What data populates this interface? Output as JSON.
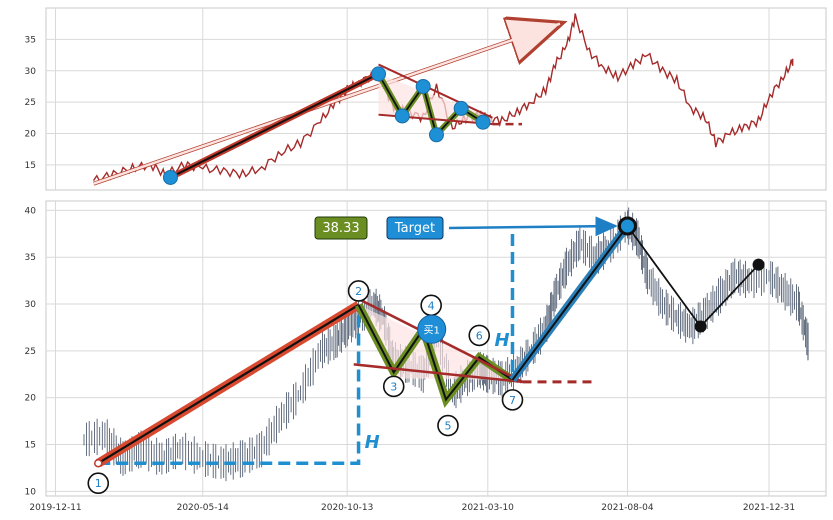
{
  "chart_data": [
    {
      "type": "line",
      "panel": "top",
      "ylim": [
        11,
        40
      ],
      "y_ticks": [
        15,
        20,
        25,
        30,
        35
      ],
      "x_range": [
        "2020-01-15",
        "2022-01-31"
      ],
      "series": [
        {
          "color": "#a52a2a",
          "x": [
            "2020-01-20",
            "2020-02-10",
            "2020-03-01",
            "2020-03-20",
            "2020-04-05",
            "2020-04-25",
            "2020-05-14",
            "2020-06-05",
            "2020-06-25",
            "2020-07-15",
            "2020-08-05",
            "2020-08-25",
            "2020-09-15",
            "2020-10-01",
            "2020-10-13",
            "2020-10-25",
            "2020-11-10",
            "2020-11-20",
            "2020-12-01",
            "2020-12-15",
            "2021-01-01",
            "2021-01-15",
            "2021-02-01",
            "2021-02-15",
            "2021-03-01",
            "2021-03-10",
            "2021-03-25",
            "2021-04-10",
            "2021-04-25",
            "2021-05-10",
            "2021-05-20",
            "2021-06-01",
            "2021-06-10",
            "2021-06-25",
            "2021-07-10",
            "2021-07-25",
            "2021-08-10",
            "2021-08-25",
            "2021-09-10",
            "2021-09-25",
            "2021-10-10",
            "2021-10-25",
            "2021-11-05",
            "2021-11-20",
            "2021-12-05",
            "2021-12-20",
            "2022-01-01",
            "2022-01-15",
            "2022-01-25"
          ],
          "values": [
            12.5,
            13.5,
            14.5,
            15.0,
            13.5,
            15.0,
            14.5,
            14.0,
            13.5,
            14.5,
            17.0,
            18.5,
            22.0,
            25.0,
            27.0,
            28.0,
            29.5,
            28.0,
            24.0,
            23.5,
            22.5,
            27.5,
            21.0,
            22.5,
            23.0,
            22.5,
            22.0,
            23.5,
            25.0,
            27.0,
            31.0,
            34.0,
            38.5,
            33.0,
            30.5,
            29.0,
            31.0,
            32.5,
            30.0,
            28.5,
            24.0,
            22.5,
            18.5,
            20.0,
            21.0,
            22.0,
            26.0,
            29.0,
            31.5
          ]
        }
      ],
      "annotations": {
        "blue_points": [
          {
            "x": "2020-04-10",
            "y": 13.0
          },
          {
            "x": "2020-11-15",
            "y": 29.5
          },
          {
            "x": "2020-12-10",
            "y": 22.8
          },
          {
            "x": "2021-01-01",
            "y": 27.5
          },
          {
            "x": "2021-01-15",
            "y": 19.8
          },
          {
            "x": "2021-02-10",
            "y": 24.0
          },
          {
            "x": "2021-03-05",
            "y": 21.8
          }
        ],
        "arrow_start": {
          "x": "2020-01-20",
          "y": 12.0
        },
        "arrow_end": {
          "x": "2021-05-25",
          "y": 37.5
        },
        "trend_upper": [
          {
            "x": "2020-11-15",
            "y": 31.0
          },
          {
            "x": "2021-03-15",
            "y": 22.5
          }
        ],
        "trend_lower": [
          {
            "x": "2020-11-15",
            "y": 23.0
          },
          {
            "x": "2021-03-15",
            "y": 21.5
          }
        ],
        "dashed_ext": [
          {
            "x": "2021-03-15",
            "y": 21.5
          },
          {
            "x": "2021-04-15",
            "y": 21.5
          }
        ]
      }
    },
    {
      "type": "line",
      "panel": "bottom",
      "ylim": [
        9.5,
        41
      ],
      "y_ticks": [
        10,
        15,
        20,
        25,
        30,
        35,
        40
      ],
      "x_ticks": [
        "2019-12-11",
        "2020-05-14",
        "2020-10-13",
        "2021-03-10",
        "2021-08-04",
        "2021-12-31"
      ],
      "x_range": [
        "2019-12-01",
        "2022-03-01"
      ],
      "series": [
        {
          "color": "#3f4d63",
          "x": [
            "2020-01-10",
            "2020-02-01",
            "2020-02-20",
            "2020-03-10",
            "2020-04-01",
            "2020-04-20",
            "2020-05-14",
            "2020-06-05",
            "2020-06-25",
            "2020-07-15",
            "2020-08-05",
            "2020-08-25",
            "2020-09-15",
            "2020-10-01",
            "2020-10-13",
            "2020-10-25",
            "2020-11-10",
            "2020-11-20",
            "2020-12-01",
            "2020-12-15",
            "2021-01-01",
            "2021-01-15",
            "2021-02-01",
            "2021-02-15",
            "2021-03-01",
            "2021-03-10",
            "2021-03-25",
            "2021-04-10",
            "2021-04-25",
            "2021-05-10",
            "2021-05-20",
            "2021-06-01",
            "2021-06-15",
            "2021-07-01",
            "2021-07-15",
            "2021-08-04",
            "2021-08-15",
            "2021-08-25",
            "2021-09-10",
            "2021-09-25",
            "2021-10-10",
            "2021-10-25",
            "2021-11-10",
            "2021-11-25",
            "2021-12-10",
            "2021-12-31",
            "2022-01-15",
            "2022-01-31",
            "2022-02-10"
          ],
          "values": [
            15.5,
            16.0,
            13.5,
            14.5,
            13.5,
            14.5,
            13.5,
            13.0,
            13.5,
            14.5,
            18.0,
            20.5,
            25.0,
            26.0,
            27.5,
            28.5,
            30.0,
            28.5,
            24.0,
            23.5,
            22.5,
            27.0,
            20.5,
            22.0,
            23.0,
            22.5,
            22.0,
            23.0,
            25.0,
            27.5,
            31.0,
            34.0,
            36.5,
            35.0,
            36.0,
            38.5,
            37.0,
            33.0,
            30.0,
            28.5,
            27.5,
            29.0,
            31.0,
            33.0,
            32.5,
            33.0,
            31.5,
            30.0,
            26.0
          ]
        }
      ],
      "annotations": {
        "pattern_points": [
          {
            "label": "1",
            "x": "2020-01-25",
            "y": 13.0
          },
          {
            "label": "2",
            "x": "2020-10-25",
            "y": 29.9
          },
          {
            "label": "3",
            "x": "2020-12-01",
            "y": 22.7
          },
          {
            "label": "4",
            "x": "2021-01-01",
            "y": 27.3
          },
          {
            "label": "5",
            "x": "2021-01-25",
            "y": 19.8
          },
          {
            "label": "6",
            "x": "2021-03-01",
            "y": 24.3
          },
          {
            "label": "7",
            "x": "2021-04-05",
            "y": 21.9
          }
        ],
        "target_point": {
          "x": "2021-08-04",
          "y": 38.33
        },
        "black_points": [
          {
            "x": "2021-10-20",
            "y": 27.6
          },
          {
            "x": "2021-12-20",
            "y": 34.2
          }
        ],
        "buy_point": {
          "label": "买1",
          "x": "2021-01-10",
          "y": 27.3
        },
        "target_label": "Target",
        "target_value": "38.33",
        "h_label": "H"
      }
    }
  ]
}
